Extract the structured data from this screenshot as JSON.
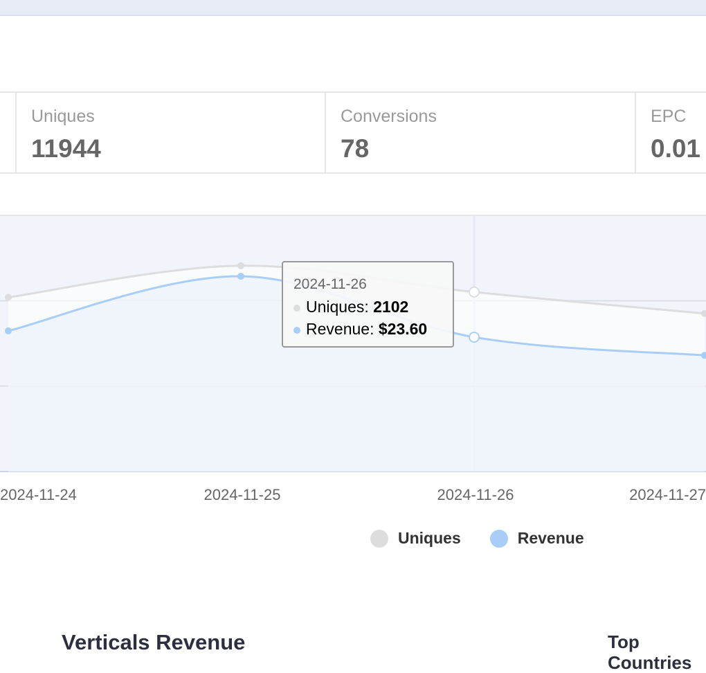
{
  "stats": [
    {
      "label": "Uniques",
      "value": "11944"
    },
    {
      "label": "Conversions",
      "value": "78"
    },
    {
      "label": "EPC",
      "value": "0.01"
    }
  ],
  "chart_data": {
    "type": "line",
    "x": [
      "2024-11-24",
      "2024-11-25",
      "2024-11-26",
      "2024-11-27"
    ],
    "x_labels": [
      "2024-11-24",
      "2024-11-25",
      "2024-11-26",
      "2024-11-27"
    ],
    "series": [
      {
        "name": "Uniques",
        "color": "#dddddd",
        "values": [
          2040,
          2410,
          2102,
          1850
        ],
        "ylim": [
          0,
          3000
        ]
      },
      {
        "name": "Revenue",
        "color": "#a8cef8",
        "values": [
          24.7,
          34.3,
          23.6,
          20.4
        ],
        "ylim": [
          0,
          45
        ]
      }
    ],
    "grid": true,
    "legend": "bottom",
    "tooltip": {
      "date": "2024-11-26",
      "uniques_label": "Uniques:",
      "uniques_value": "2102",
      "revenue_label": "Revenue:",
      "revenue_value": "$23.60"
    }
  },
  "sections": {
    "verticals": "Verticals Revenue",
    "countries": "Top Countries"
  }
}
